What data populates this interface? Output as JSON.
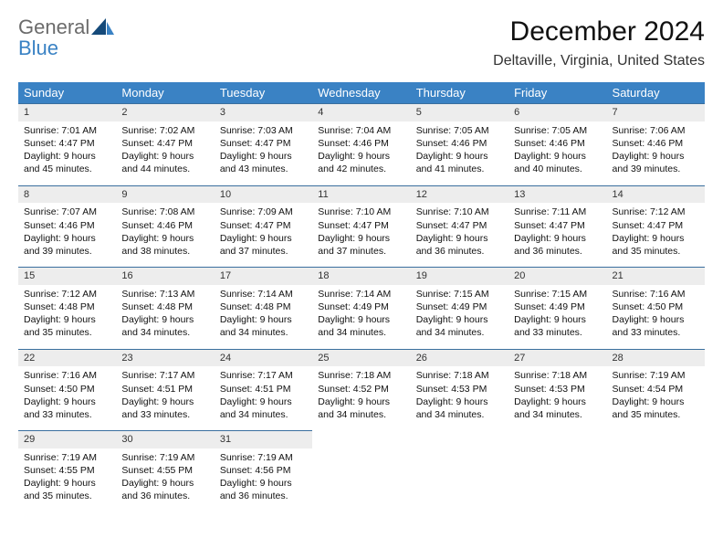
{
  "logo": {
    "line1": "General",
    "line2": "Blue"
  },
  "title": "December 2024",
  "location": "Deltaville, Virginia, United States",
  "colors": {
    "header_bg": "#3a82c4",
    "header_fg": "#ffffff",
    "daynum_bg": "#ededed",
    "rule": "#3a6f9e",
    "logo_gray": "#6b6b6b",
    "logo_blue": "#3a82c4"
  },
  "weekdays": [
    "Sunday",
    "Monday",
    "Tuesday",
    "Wednesday",
    "Thursday",
    "Friday",
    "Saturday"
  ],
  "weeks": [
    [
      {
        "n": "1",
        "sr": "Sunrise: 7:01 AM",
        "ss": "Sunset: 4:47 PM",
        "d1": "Daylight: 9 hours",
        "d2": "and 45 minutes."
      },
      {
        "n": "2",
        "sr": "Sunrise: 7:02 AM",
        "ss": "Sunset: 4:47 PM",
        "d1": "Daylight: 9 hours",
        "d2": "and 44 minutes."
      },
      {
        "n": "3",
        "sr": "Sunrise: 7:03 AM",
        "ss": "Sunset: 4:47 PM",
        "d1": "Daylight: 9 hours",
        "d2": "and 43 minutes."
      },
      {
        "n": "4",
        "sr": "Sunrise: 7:04 AM",
        "ss": "Sunset: 4:46 PM",
        "d1": "Daylight: 9 hours",
        "d2": "and 42 minutes."
      },
      {
        "n": "5",
        "sr": "Sunrise: 7:05 AM",
        "ss": "Sunset: 4:46 PM",
        "d1": "Daylight: 9 hours",
        "d2": "and 41 minutes."
      },
      {
        "n": "6",
        "sr": "Sunrise: 7:05 AM",
        "ss": "Sunset: 4:46 PM",
        "d1": "Daylight: 9 hours",
        "d2": "and 40 minutes."
      },
      {
        "n": "7",
        "sr": "Sunrise: 7:06 AM",
        "ss": "Sunset: 4:46 PM",
        "d1": "Daylight: 9 hours",
        "d2": "and 39 minutes."
      }
    ],
    [
      {
        "n": "8",
        "sr": "Sunrise: 7:07 AM",
        "ss": "Sunset: 4:46 PM",
        "d1": "Daylight: 9 hours",
        "d2": "and 39 minutes."
      },
      {
        "n": "9",
        "sr": "Sunrise: 7:08 AM",
        "ss": "Sunset: 4:46 PM",
        "d1": "Daylight: 9 hours",
        "d2": "and 38 minutes."
      },
      {
        "n": "10",
        "sr": "Sunrise: 7:09 AM",
        "ss": "Sunset: 4:47 PM",
        "d1": "Daylight: 9 hours",
        "d2": "and 37 minutes."
      },
      {
        "n": "11",
        "sr": "Sunrise: 7:10 AM",
        "ss": "Sunset: 4:47 PM",
        "d1": "Daylight: 9 hours",
        "d2": "and 37 minutes."
      },
      {
        "n": "12",
        "sr": "Sunrise: 7:10 AM",
        "ss": "Sunset: 4:47 PM",
        "d1": "Daylight: 9 hours",
        "d2": "and 36 minutes."
      },
      {
        "n": "13",
        "sr": "Sunrise: 7:11 AM",
        "ss": "Sunset: 4:47 PM",
        "d1": "Daylight: 9 hours",
        "d2": "and 36 minutes."
      },
      {
        "n": "14",
        "sr": "Sunrise: 7:12 AM",
        "ss": "Sunset: 4:47 PM",
        "d1": "Daylight: 9 hours",
        "d2": "and 35 minutes."
      }
    ],
    [
      {
        "n": "15",
        "sr": "Sunrise: 7:12 AM",
        "ss": "Sunset: 4:48 PM",
        "d1": "Daylight: 9 hours",
        "d2": "and 35 minutes."
      },
      {
        "n": "16",
        "sr": "Sunrise: 7:13 AM",
        "ss": "Sunset: 4:48 PM",
        "d1": "Daylight: 9 hours",
        "d2": "and 34 minutes."
      },
      {
        "n": "17",
        "sr": "Sunrise: 7:14 AM",
        "ss": "Sunset: 4:48 PM",
        "d1": "Daylight: 9 hours",
        "d2": "and 34 minutes."
      },
      {
        "n": "18",
        "sr": "Sunrise: 7:14 AM",
        "ss": "Sunset: 4:49 PM",
        "d1": "Daylight: 9 hours",
        "d2": "and 34 minutes."
      },
      {
        "n": "19",
        "sr": "Sunrise: 7:15 AM",
        "ss": "Sunset: 4:49 PM",
        "d1": "Daylight: 9 hours",
        "d2": "and 34 minutes."
      },
      {
        "n": "20",
        "sr": "Sunrise: 7:15 AM",
        "ss": "Sunset: 4:49 PM",
        "d1": "Daylight: 9 hours",
        "d2": "and 33 minutes."
      },
      {
        "n": "21",
        "sr": "Sunrise: 7:16 AM",
        "ss": "Sunset: 4:50 PM",
        "d1": "Daylight: 9 hours",
        "d2": "and 33 minutes."
      }
    ],
    [
      {
        "n": "22",
        "sr": "Sunrise: 7:16 AM",
        "ss": "Sunset: 4:50 PM",
        "d1": "Daylight: 9 hours",
        "d2": "and 33 minutes."
      },
      {
        "n": "23",
        "sr": "Sunrise: 7:17 AM",
        "ss": "Sunset: 4:51 PM",
        "d1": "Daylight: 9 hours",
        "d2": "and 33 minutes."
      },
      {
        "n": "24",
        "sr": "Sunrise: 7:17 AM",
        "ss": "Sunset: 4:51 PM",
        "d1": "Daylight: 9 hours",
        "d2": "and 34 minutes."
      },
      {
        "n": "25",
        "sr": "Sunrise: 7:18 AM",
        "ss": "Sunset: 4:52 PM",
        "d1": "Daylight: 9 hours",
        "d2": "and 34 minutes."
      },
      {
        "n": "26",
        "sr": "Sunrise: 7:18 AM",
        "ss": "Sunset: 4:53 PM",
        "d1": "Daylight: 9 hours",
        "d2": "and 34 minutes."
      },
      {
        "n": "27",
        "sr": "Sunrise: 7:18 AM",
        "ss": "Sunset: 4:53 PM",
        "d1": "Daylight: 9 hours",
        "d2": "and 34 minutes."
      },
      {
        "n": "28",
        "sr": "Sunrise: 7:19 AM",
        "ss": "Sunset: 4:54 PM",
        "d1": "Daylight: 9 hours",
        "d2": "and 35 minutes."
      }
    ],
    [
      {
        "n": "29",
        "sr": "Sunrise: 7:19 AM",
        "ss": "Sunset: 4:55 PM",
        "d1": "Daylight: 9 hours",
        "d2": "and 35 minutes."
      },
      {
        "n": "30",
        "sr": "Sunrise: 7:19 AM",
        "ss": "Sunset: 4:55 PM",
        "d1": "Daylight: 9 hours",
        "d2": "and 36 minutes."
      },
      {
        "n": "31",
        "sr": "Sunrise: 7:19 AM",
        "ss": "Sunset: 4:56 PM",
        "d1": "Daylight: 9 hours",
        "d2": "and 36 minutes."
      },
      null,
      null,
      null,
      null
    ]
  ]
}
